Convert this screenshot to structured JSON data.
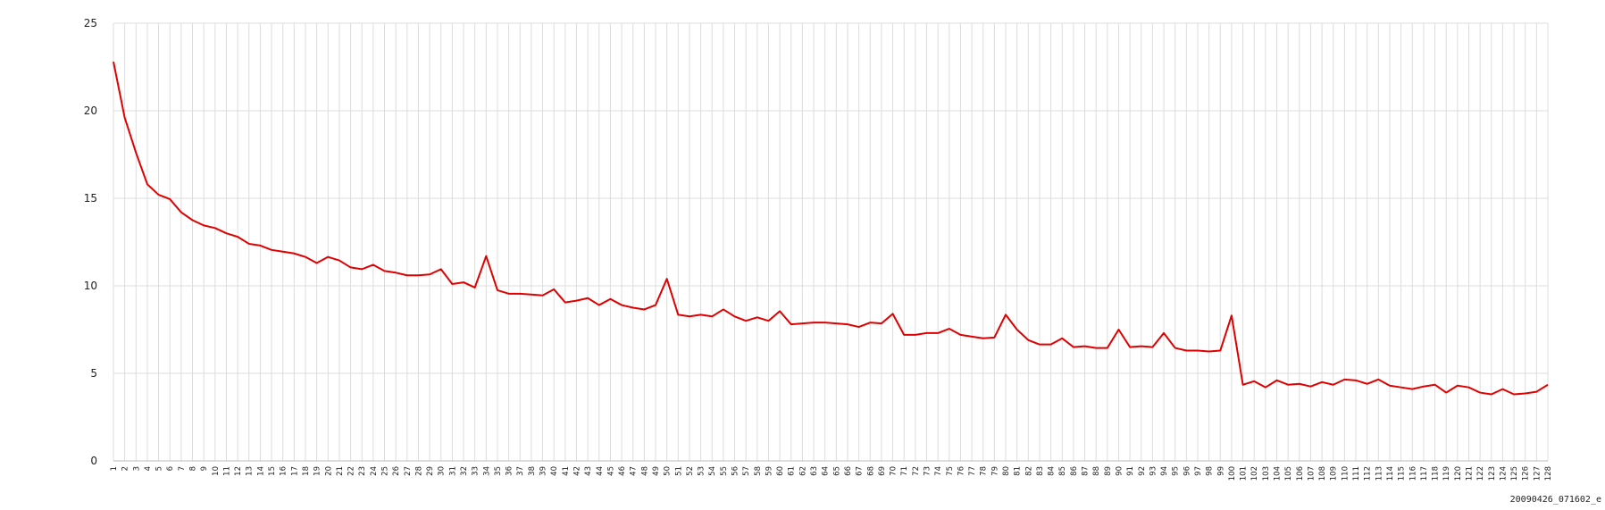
{
  "chart_data": {
    "type": "line",
    "annotation": "20090426_071602_e",
    "categories": [
      1,
      2,
      3,
      4,
      5,
      6,
      7,
      8,
      9,
      10,
      11,
      12,
      13,
      14,
      15,
      16,
      17,
      18,
      19,
      20,
      21,
      22,
      23,
      24,
      25,
      26,
      27,
      28,
      29,
      30,
      31,
      32,
      33,
      34,
      35,
      36,
      37,
      38,
      39,
      40,
      41,
      42,
      43,
      44,
      45,
      46,
      47,
      48,
      49,
      50,
      51,
      52,
      53,
      54,
      55,
      56,
      57,
      58,
      59,
      60,
      61,
      62,
      63,
      64,
      65,
      66,
      67,
      68,
      69,
      70,
      71,
      72,
      73,
      74,
      75,
      76,
      77,
      78,
      79,
      80,
      81,
      82,
      83,
      84,
      85,
      86,
      87,
      88,
      89,
      90,
      91,
      92,
      93,
      94,
      95,
      96,
      97,
      98,
      99,
      100,
      101,
      102,
      103,
      104,
      105,
      106,
      107,
      108,
      109,
      110,
      111,
      112,
      113,
      114,
      115,
      116,
      117,
      118,
      119,
      120,
      121,
      122,
      123,
      124,
      125,
      126,
      127,
      128
    ],
    "series": [
      {
        "color": "#e00000",
        "values": [
          22.8,
          19.6,
          17.6,
          15.8,
          15.2,
          14.95,
          14.2,
          13.75,
          13.45,
          13.3,
          13.0,
          12.8,
          12.4,
          12.3,
          12.05,
          11.95,
          11.85,
          11.65,
          11.3,
          11.65,
          11.45,
          11.05,
          10.95,
          11.2,
          10.85,
          10.75,
          10.6,
          10.6,
          10.65,
          10.95,
          10.1,
          10.2,
          9.9,
          11.7,
          9.75,
          9.55,
          9.55,
          9.5,
          9.45,
          9.8,
          9.05,
          9.15,
          9.3,
          8.9,
          9.25,
          8.9,
          8.75,
          8.65,
          8.9,
          10.4,
          8.35,
          8.25,
          8.35,
          8.25,
          8.65,
          8.25,
          8.0,
          8.2,
          8.0,
          8.55,
          7.8,
          7.85,
          7.9,
          7.9,
          7.85,
          7.8,
          7.65,
          7.9,
          7.85,
          8.4,
          7.2,
          7.2,
          7.3,
          7.3,
          7.55,
          7.2,
          7.1,
          7.0,
          7.05,
          8.35,
          7.5,
          6.9,
          6.65,
          6.65,
          7.0,
          6.5,
          6.55,
          6.45,
          6.45,
          7.5,
          6.5,
          6.55,
          6.5,
          7.3,
          6.45,
          6.3,
          6.3,
          6.25,
          6.3,
          8.3,
          4.35,
          4.55,
          4.2,
          4.6,
          4.35,
          4.4,
          4.25,
          4.5,
          4.35,
          4.65,
          4.6,
          4.4,
          4.65,
          4.3,
          4.2,
          4.1,
          4.25,
          4.35,
          3.9,
          4.3,
          4.2,
          3.9,
          3.8,
          4.1,
          3.8,
          3.85,
          3.95,
          4.35
        ]
      }
    ],
    "ylim": [
      0,
      25
    ],
    "yticks": [
      0,
      5,
      10,
      15,
      20,
      25
    ],
    "grid": true
  }
}
